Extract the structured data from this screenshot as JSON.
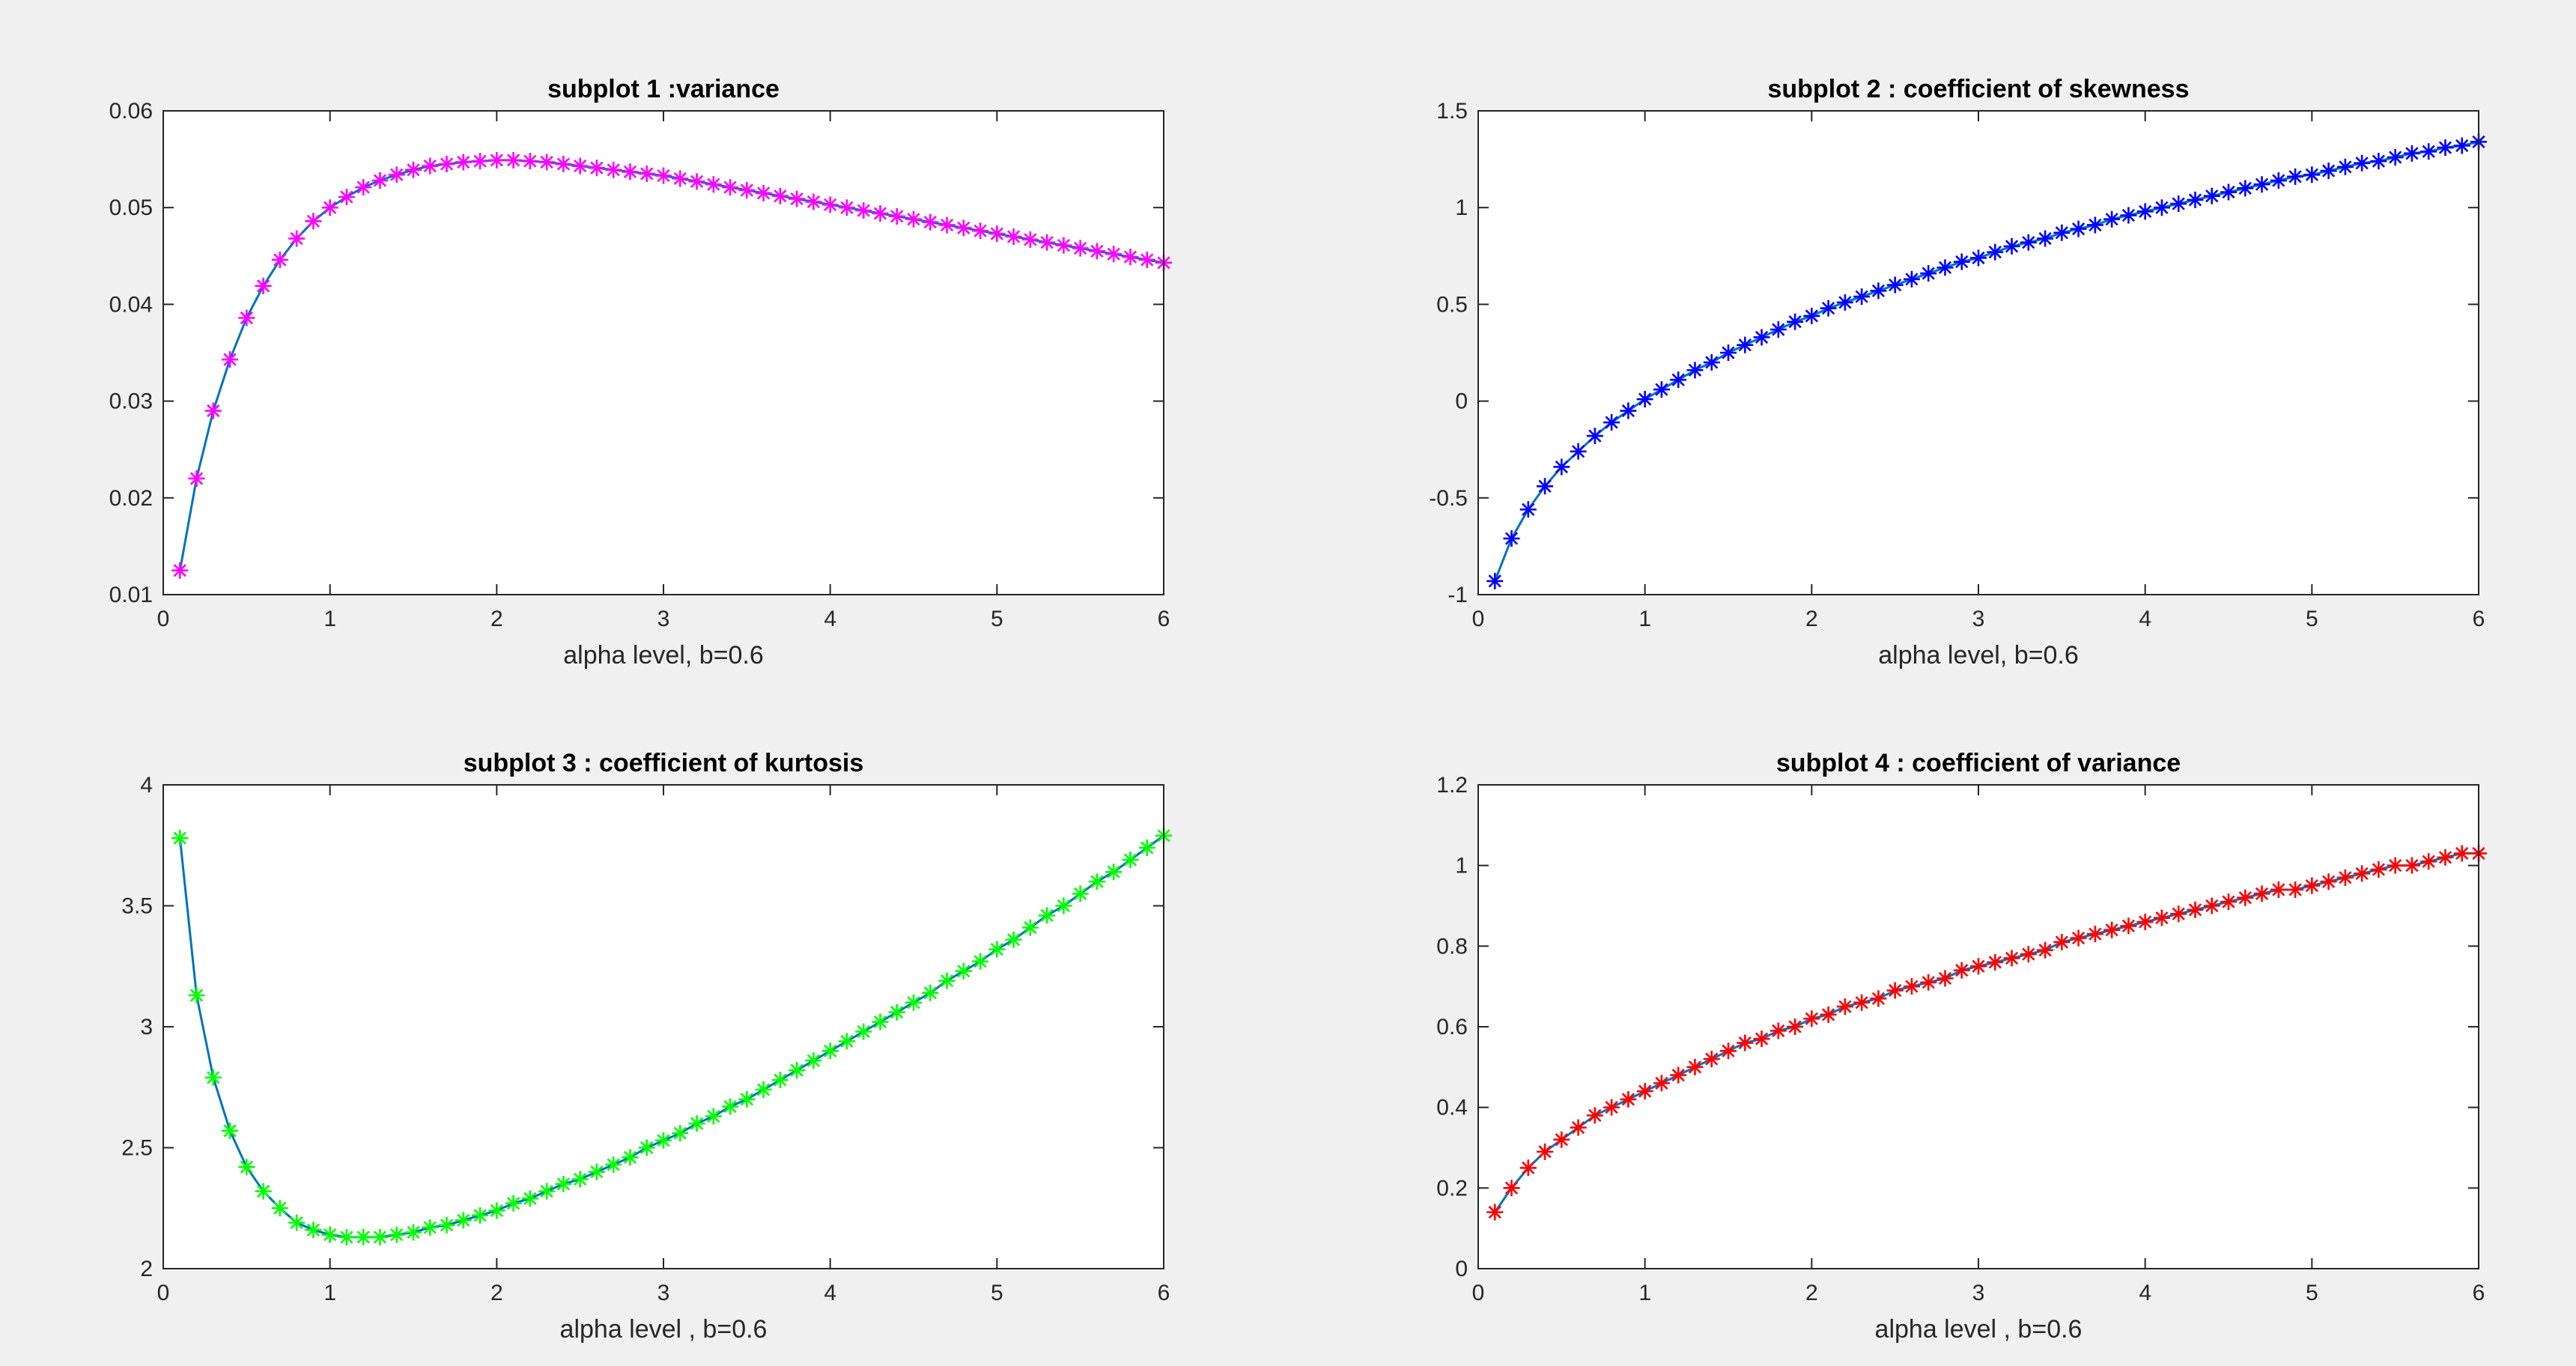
{
  "chart_data": [
    {
      "type": "line",
      "title": "subplot 1 :variance",
      "xlabel": "alpha level, b=0.6",
      "ylabel": "",
      "xlim": [
        0,
        6
      ],
      "ylim": [
        0.01,
        0.06
      ],
      "xticks": [
        "0",
        "1",
        "2",
        "3",
        "4",
        "5",
        "6"
      ],
      "yticks": [
        "0.01",
        "0.02",
        "0.03",
        "0.04",
        "0.05",
        "0.06"
      ],
      "grid": false,
      "marker": "*",
      "marker_color": "#ff00ff",
      "line_color": "#0072bd",
      "series": [
        {
          "x": [
            0.1,
            0.2,
            0.3,
            0.4,
            0.5,
            0.6,
            0.7,
            0.8,
            0.9,
            1.0,
            1.1,
            1.2,
            1.3,
            1.4,
            1.5,
            1.6,
            1.7,
            1.8,
            1.9,
            2.0,
            2.1,
            2.2,
            2.3,
            2.4,
            2.5,
            2.6,
            2.7,
            2.8,
            2.9,
            3.0,
            3.1,
            3.2,
            3.3,
            3.4,
            3.5,
            3.6,
            3.7,
            3.8,
            3.9,
            4.0,
            4.1,
            4.2,
            4.3,
            4.4,
            4.5,
            4.6,
            4.7,
            4.8,
            4.9,
            5.0,
            5.1,
            5.2,
            5.3,
            5.4,
            5.5,
            5.6,
            5.7,
            5.8,
            5.9,
            6.0
          ],
          "values": [
            0.0125,
            0.022,
            0.029,
            0.0343,
            0.0386,
            0.0419,
            0.0446,
            0.0468,
            0.0486,
            0.05,
            0.0511,
            0.0521,
            0.0528,
            0.0534,
            0.0539,
            0.0543,
            0.0545,
            0.0547,
            0.0548,
            0.0549,
            0.0549,
            0.0548,
            0.0547,
            0.0545,
            0.0543,
            0.0541,
            0.0539,
            0.0537,
            0.0535,
            0.0533,
            0.053,
            0.0527,
            0.0524,
            0.0521,
            0.0518,
            0.0515,
            0.0512,
            0.0509,
            0.0506,
            0.0503,
            0.05,
            0.0497,
            0.0494,
            0.0491,
            0.0488,
            0.0485,
            0.0482,
            0.0479,
            0.0476,
            0.0473,
            0.047,
            0.0467,
            0.0464,
            0.0461,
            0.0458,
            0.0455,
            0.0452,
            0.0449,
            0.0446,
            0.0443
          ]
        }
      ]
    },
    {
      "type": "line",
      "title": "subplot 2 : coefficient of skewness",
      "xlabel": "alpha level, b=0.6",
      "ylabel": "",
      "xlim": [
        0,
        6
      ],
      "ylim": [
        -1,
        1.5
      ],
      "xticks": [
        "0",
        "1",
        "2",
        "3",
        "4",
        "5",
        "6"
      ],
      "yticks": [
        "-1",
        "-0.5",
        "0",
        "0.5",
        "1",
        "1.5"
      ],
      "grid": false,
      "marker": "*",
      "marker_color": "#0000ff",
      "line_color": "#0072bd",
      "series": [
        {
          "x": [
            0.1,
            0.2,
            0.3,
            0.4,
            0.5,
            0.6,
            0.7,
            0.8,
            0.9,
            1.0,
            1.1,
            1.2,
            1.3,
            1.4,
            1.5,
            1.6,
            1.7,
            1.8,
            1.9,
            2.0,
            2.1,
            2.2,
            2.3,
            2.4,
            2.5,
            2.6,
            2.7,
            2.8,
            2.9,
            3.0,
            3.1,
            3.2,
            3.3,
            3.4,
            3.5,
            3.6,
            3.7,
            3.8,
            3.9,
            4.0,
            4.1,
            4.2,
            4.3,
            4.4,
            4.5,
            4.6,
            4.7,
            4.8,
            4.9,
            5.0,
            5.1,
            5.2,
            5.3,
            5.4,
            5.5,
            5.6,
            5.7,
            5.8,
            5.9,
            6.0
          ],
          "values": [
            -0.93,
            -0.71,
            -0.56,
            -0.44,
            -0.34,
            -0.26,
            -0.18,
            -0.11,
            -0.05,
            0.01,
            0.06,
            0.11,
            0.16,
            0.2,
            0.25,
            0.29,
            0.33,
            0.37,
            0.41,
            0.44,
            0.48,
            0.51,
            0.54,
            0.57,
            0.6,
            0.63,
            0.66,
            0.69,
            0.72,
            0.74,
            0.77,
            0.8,
            0.82,
            0.84,
            0.87,
            0.89,
            0.91,
            0.94,
            0.96,
            0.98,
            1.0,
            1.02,
            1.04,
            1.06,
            1.08,
            1.1,
            1.12,
            1.14,
            1.16,
            1.17,
            1.19,
            1.21,
            1.23,
            1.24,
            1.26,
            1.28,
            1.29,
            1.31,
            1.32,
            1.34
          ]
        }
      ]
    },
    {
      "type": "line",
      "title": "subplot 3 : coefficient of kurtosis",
      "xlabel": "alpha level , b=0.6",
      "ylabel": "",
      "xlim": [
        0,
        6
      ],
      "ylim": [
        2,
        4
      ],
      "xticks": [
        "0",
        "1",
        "2",
        "3",
        "4",
        "5",
        "6"
      ],
      "yticks": [
        "2",
        "2.5",
        "3",
        "3.5",
        "4"
      ],
      "grid": false,
      "marker": "*",
      "marker_color": "#00ff00",
      "line_color": "#0072bd",
      "series": [
        {
          "x": [
            0.1,
            0.2,
            0.3,
            0.4,
            0.5,
            0.6,
            0.7,
            0.8,
            0.9,
            1.0,
            1.1,
            1.2,
            1.3,
            1.4,
            1.5,
            1.6,
            1.7,
            1.8,
            1.9,
            2.0,
            2.1,
            2.2,
            2.3,
            2.4,
            2.5,
            2.6,
            2.7,
            2.8,
            2.9,
            3.0,
            3.1,
            3.2,
            3.3,
            3.4,
            3.5,
            3.6,
            3.7,
            3.8,
            3.9,
            4.0,
            4.1,
            4.2,
            4.3,
            4.4,
            4.5,
            4.6,
            4.7,
            4.8,
            4.9,
            5.0,
            5.1,
            5.2,
            5.3,
            5.4,
            5.5,
            5.6,
            5.7,
            5.8,
            5.9,
            6.0
          ],
          "values": [
            3.78,
            3.13,
            2.79,
            2.57,
            2.42,
            2.32,
            2.25,
            2.19,
            2.16,
            2.14,
            2.13,
            2.13,
            2.13,
            2.14,
            2.15,
            2.17,
            2.18,
            2.2,
            2.22,
            2.24,
            2.27,
            2.29,
            2.32,
            2.35,
            2.37,
            2.4,
            2.43,
            2.46,
            2.5,
            2.53,
            2.56,
            2.6,
            2.63,
            2.67,
            2.7,
            2.74,
            2.78,
            2.82,
            2.86,
            2.9,
            2.94,
            2.98,
            3.02,
            3.06,
            3.1,
            3.14,
            3.19,
            3.23,
            3.27,
            3.32,
            3.36,
            3.41,
            3.46,
            3.5,
            3.55,
            3.6,
            3.64,
            3.69,
            3.74,
            3.79
          ]
        }
      ]
    },
    {
      "type": "line",
      "title": "subplot 4 : coefficient of variance",
      "xlabel": "alpha level , b=0.6",
      "ylabel": "",
      "xlim": [
        0,
        6
      ],
      "ylim": [
        0,
        1.2
      ],
      "xticks": [
        "0",
        "1",
        "2",
        "3",
        "4",
        "5",
        "6"
      ],
      "yticks": [
        "0",
        "0.2",
        "0.4",
        "0.6",
        "0.8",
        "1",
        "1.2"
      ],
      "grid": false,
      "marker": "*",
      "marker_color": "#ff0000",
      "line_color": "#0072bd",
      "series": [
        {
          "x": [
            0.1,
            0.2,
            0.3,
            0.4,
            0.5,
            0.6,
            0.7,
            0.8,
            0.9,
            1.0,
            1.1,
            1.2,
            1.3,
            1.4,
            1.5,
            1.6,
            1.7,
            1.8,
            1.9,
            2.0,
            2.1,
            2.2,
            2.3,
            2.4,
            2.5,
            2.6,
            2.7,
            2.8,
            2.9,
            3.0,
            3.1,
            3.2,
            3.3,
            3.4,
            3.5,
            3.6,
            3.7,
            3.8,
            3.9,
            4.0,
            4.1,
            4.2,
            4.3,
            4.4,
            4.5,
            4.6,
            4.7,
            4.8,
            4.9,
            5.0,
            5.1,
            5.2,
            5.3,
            5.4,
            5.5,
            5.6,
            5.7,
            5.8,
            5.9,
            6.0
          ],
          "values": [
            0.14,
            0.2,
            0.25,
            0.29,
            0.32,
            0.35,
            0.38,
            0.4,
            0.42,
            0.44,
            0.46,
            0.48,
            0.5,
            0.52,
            0.54,
            0.56,
            0.57,
            0.59,
            0.6,
            0.62,
            0.63,
            0.65,
            0.66,
            0.67,
            0.69,
            0.7,
            0.71,
            0.72,
            0.74,
            0.75,
            0.76,
            0.77,
            0.78,
            0.79,
            0.81,
            0.82,
            0.83,
            0.84,
            0.85,
            0.86,
            0.87,
            0.88,
            0.89,
            0.9,
            0.91,
            0.92,
            0.93,
            0.94,
            0.94,
            0.95,
            0.96,
            0.97,
            0.98,
            0.99,
            1.0,
            1.0,
            1.01,
            1.02,
            1.03,
            1.03
          ]
        }
      ]
    }
  ]
}
